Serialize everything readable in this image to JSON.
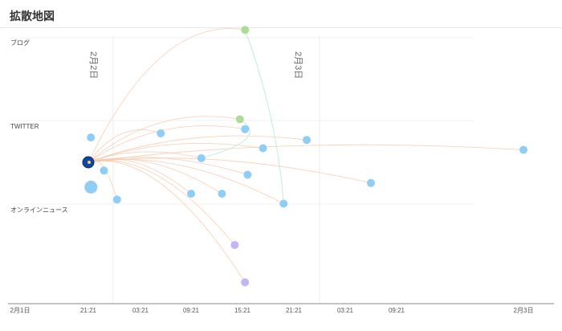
{
  "window": {
    "title": "拡散地図"
  },
  "lanes": [
    "ブログ",
    "TWITTER",
    "オンラインニュース"
  ],
  "date_markers": [
    "2月2日",
    "2月3日"
  ],
  "x_axis": {
    "ticks": [
      "2月1日",
      "21:21",
      "03:21",
      "09:21",
      "15:21",
      "21:21",
      "03:21",
      "09:21",
      "2月3日"
    ]
  },
  "colors": {
    "twitter_node": "#8ecdf5",
    "blog_node": "#aedb96",
    "news_node": "#c4b5f4",
    "source_node": "#0d47a1",
    "edge": "#f7c8ad",
    "edge_alt": "#b9ece4",
    "grid": "#f0f0f0",
    "axis": "#888888"
  },
  "chart_data": {
    "type": "scatter",
    "title": "拡散地図",
    "x_ticks": [
      "2月1日",
      "21:21",
      "03:21",
      "09:21",
      "15:21",
      "21:21",
      "03:21",
      "09:21",
      "2月3日"
    ],
    "y_categories": [
      "ブログ",
      "TWITTER",
      "オンラインニュース"
    ],
    "source": {
      "x_tick": 1,
      "lane": "TWITTER",
      "type": "source"
    },
    "nodes": [
      {
        "x_tick": 1.05,
        "lane_offset": 0.3,
        "type": "twitter"
      },
      {
        "x_tick": 1.05,
        "lane_offset": -0.3,
        "type": "twitter",
        "size": "large"
      },
      {
        "x_tick": 1.3,
        "lane_offset": -0.1,
        "type": "twitter"
      },
      {
        "x_tick": 1.55,
        "lane_offset": -0.45,
        "type": "twitter"
      },
      {
        "x_tick": 2.4,
        "lane_offset": 0.35,
        "type": "twitter"
      },
      {
        "x_tick": 3.2,
        "lane_offset": 0.05,
        "type": "twitter"
      },
      {
        "x_tick": 3.0,
        "lane_offset": -0.38,
        "type": "twitter"
      },
      {
        "x_tick": 3.6,
        "lane_offset": -0.38,
        "type": "twitter"
      },
      {
        "x_tick": 4.05,
        "lane_offset": 0.4,
        "type": "twitter"
      },
      {
        "x_tick": 4.4,
        "lane_offset": 0.17,
        "type": "twitter"
      },
      {
        "x_tick": 4.1,
        "lane_offset": -0.15,
        "type": "twitter"
      },
      {
        "x_tick": 4.8,
        "lane_offset": -0.5,
        "type": "twitter"
      },
      {
        "x_tick": 5.25,
        "lane_offset": 0.27,
        "type": "twitter"
      },
      {
        "x_tick": 6.5,
        "lane_offset": -0.25,
        "type": "twitter"
      },
      {
        "x_tick": 8.0,
        "lane_offset": 0.15,
        "type": "twitter"
      },
      {
        "x_tick": 4.05,
        "lane_offset": 1.6,
        "type": "blog"
      },
      {
        "x_tick": 3.95,
        "lane_offset": 0.52,
        "type": "blog"
      },
      {
        "x_tick": 3.85,
        "lane_offset": -1.0,
        "type": "news"
      },
      {
        "x_tick": 4.05,
        "lane_offset": -1.45,
        "type": "news"
      }
    ]
  }
}
